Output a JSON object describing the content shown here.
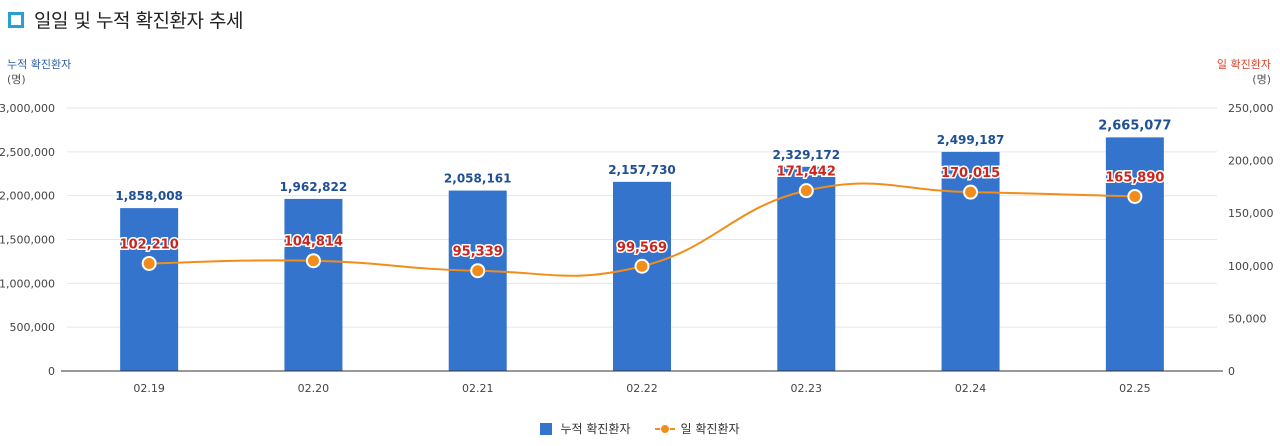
{
  "title": "일일 및 누적 확진환자 추세",
  "left_axis": {
    "label": "누적 확진환자",
    "unit": "(명)"
  },
  "right_axis": {
    "label": "일 확진환자",
    "unit": "(명)"
  },
  "legend": {
    "bar": "누적 확진환자",
    "line": "일 확진환자"
  },
  "colors": {
    "bar": "#3474cc",
    "line": "#f28d1c",
    "bar_label": "#1f4f94",
    "line_label": "#c9261e",
    "title_icon": "#2a9fd6"
  },
  "chart_data": {
    "type": "bar",
    "categories": [
      "02.19",
      "02.20",
      "02.21",
      "02.22",
      "02.23",
      "02.24",
      "02.25"
    ],
    "series": [
      {
        "name": "누적 확진환자",
        "type": "bar",
        "axis": "left",
        "values": [
          1858008,
          1962822,
          2058161,
          2157730,
          2329172,
          2499187,
          2665077
        ],
        "labels": [
          "1,858,008",
          "1,962,822",
          "2,058,161",
          "2,157,730",
          "2,329,172",
          "2,499,187",
          "2,665,077"
        ]
      },
      {
        "name": "일 확진환자",
        "type": "line",
        "axis": "right",
        "values": [
          102210,
          104814,
          95339,
          99569,
          171442,
          170015,
          165890
        ],
        "labels": [
          "102,210",
          "104,814",
          "95,339",
          "99,569",
          "171,442",
          "170,015",
          "165,890"
        ]
      }
    ],
    "left_ylim": [
      0,
      3000000
    ],
    "right_ylim": [
      0,
      250000
    ],
    "left_ticks": [
      "0",
      "500,000",
      "1,000,000",
      "1,500,000",
      "2,000,000",
      "2,500,000",
      "3,000,000"
    ],
    "right_ticks": [
      "0",
      "50,000",
      "100,000",
      "150,000",
      "200,000",
      "250,000"
    ],
    "grid": true,
    "legend_position": "bottom-center"
  }
}
